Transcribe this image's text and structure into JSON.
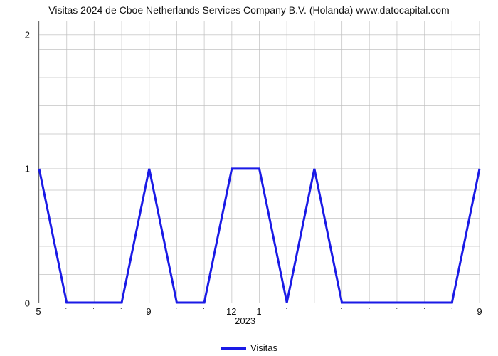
{
  "title": "Visitas 2024 de Cboe Netherlands Services Company B.V. (Holanda) www.datocapital.com",
  "chart": {
    "type": "line",
    "background_color": "#ffffff",
    "grid_color": "#bfbfbf",
    "grid_opacity": 0.7,
    "axis_color": "#444444",
    "title_fontsize": 14,
    "tick_fontsize": 13,
    "points_count": 17,
    "series": {
      "name": "Visitas",
      "color": "#1a1ae6",
      "line_width": 3,
      "y": [
        1,
        0,
        0,
        0,
        1,
        0,
        0,
        1,
        1,
        0,
        1,
        0,
        0,
        0,
        0,
        0,
        1
      ]
    },
    "yaxis": {
      "lim": [
        0,
        2.1
      ],
      "major_ticks": [
        0,
        1,
        2
      ],
      "minor_grid_count": 9
    },
    "xaxis": {
      "major_ticks": [
        {
          "pos": 0,
          "label": "5"
        },
        {
          "pos": 4,
          "label": "9"
        },
        {
          "pos": 7,
          "label": "12"
        },
        {
          "pos": 8,
          "label": "1"
        },
        {
          "pos": 16,
          "label": "9"
        }
      ],
      "minor_tick_positions": [
        1,
        2,
        3,
        5,
        6,
        9,
        10,
        11,
        12,
        13,
        14,
        15
      ],
      "year_label": "2023",
      "year_label_pos": 7.5
    }
  },
  "legend": {
    "label": "Visitas",
    "swatch_color": "#1a1ae6"
  }
}
